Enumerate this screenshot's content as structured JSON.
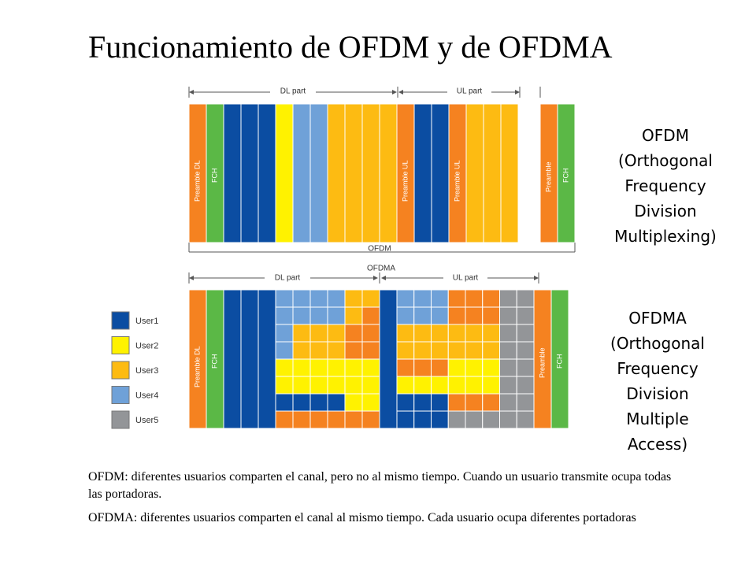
{
  "title": "Funcionamiento de OFDM y de OFDMA",
  "colors": {
    "orange": "#F58220",
    "green": "#5BB846",
    "darkblue": "#0B4DA2",
    "yellow": "#FFF200",
    "lightblue": "#6FA1D8",
    "amber": "#FDBB12",
    "gray": "#939598",
    "line": "#555555"
  },
  "ofdm_diagram": {
    "dl_part": "DL part",
    "ul_part": "UL part",
    "caption": "OFDM",
    "preamble_dl": "Preamble DL",
    "fch": "FCH",
    "preamble_ul_1": "Preamble UL",
    "preamble_ul_2": "Preamble UL",
    "preamble": "Preamble",
    "fch_2": "FCH"
  },
  "ofdma_diagram": {
    "caption": "OFDMA",
    "dl_part": "DL part",
    "ul_part": "UL part",
    "preamble_dl": "Preamble DL",
    "fch": "FCH",
    "preamble": "Preamble",
    "fch_2": "FCH"
  },
  "legend": [
    {
      "label": "User1",
      "color": "darkblue"
    },
    {
      "label": "User2",
      "color": "yellow"
    },
    {
      "label": "User3",
      "color": "amber"
    },
    {
      "label": "User4",
      "color": "lightblue"
    },
    {
      "label": "User5",
      "color": "gray"
    }
  ],
  "ofdm_label": {
    "line1": "OFDM",
    "line2": "(Orthogonal",
    "line3": "Frequency",
    "line4": "Division",
    "line5": "Multiplexing)"
  },
  "ofdma_label": {
    "line1": "OFDMA",
    "line2": "(Orthogonal",
    "line3": "Frequency",
    "line4": "Division",
    "line5": "Multiple",
    "line6": "Access)"
  },
  "description": {
    "ofdm": "OFDM: diferentes usuarios comparten el canal, pero no al mismo tiempo. Cuando un usuario transmite ocupa todas las portadoras.",
    "ofdma": "OFDMA: diferentes usuarios comparten el canal al mismo tiempo. Cada usuario ocupa diferentes portadoras"
  }
}
